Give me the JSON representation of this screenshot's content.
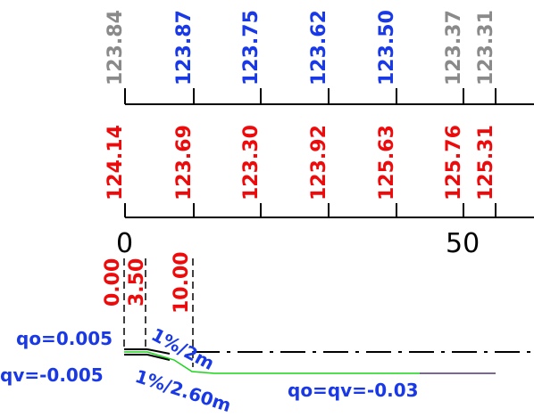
{
  "colors": {
    "grey": "#8a8a8a",
    "blue": "#1a39e6",
    "red": "#ee0a0a",
    "black": "#000000",
    "green": "#19d619"
  },
  "top_row": {
    "labels": [
      {
        "text": "123.84",
        "color": "grey"
      },
      {
        "text": "123.87",
        "color": "blue"
      },
      {
        "text": "123.75",
        "color": "blue"
      },
      {
        "text": "123.62",
        "color": "blue"
      },
      {
        "text": "123.50",
        "color": "blue"
      },
      {
        "text": "123.37",
        "color": "grey"
      },
      {
        "text": "123.31",
        "color": "grey"
      }
    ]
  },
  "bottom_row": {
    "labels": [
      {
        "text": "124.14",
        "color": "red"
      },
      {
        "text": "123.69",
        "color": "red"
      },
      {
        "text": "123.30",
        "color": "red"
      },
      {
        "text": "123.92",
        "color": "red"
      },
      {
        "text": "125.63",
        "color": "red"
      },
      {
        "text": "125.76",
        "color": "red"
      },
      {
        "text": "125.31",
        "color": "red"
      }
    ]
  },
  "stations": {
    "start": "0",
    "fifty": "50"
  },
  "offsets": {
    "labels": [
      "0.00",
      "3.50",
      "10.00"
    ]
  },
  "notes": {
    "qo_left": "qo=0.005",
    "qv_left": "qv=-0.005",
    "slope_upper": "1%/2m",
    "slope_lower": "1%/2.60m",
    "qo_qv_right": "qo=qv=-0.03"
  }
}
